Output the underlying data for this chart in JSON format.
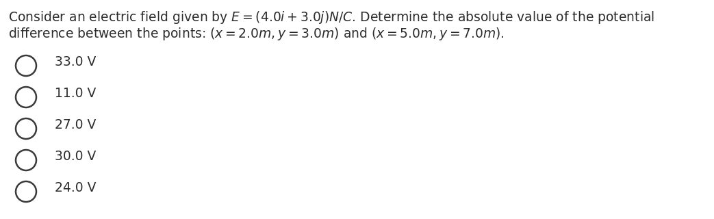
{
  "question_line1": "Consider an electric field given by $E = (4.0i + 3.0j)N/C$. Determine the absolute value of the potential",
  "question_line2": "difference between the points: $(x = 2.0m, y = 3.0m)$ and $(x = 5.0m, y = 7.0m)$.",
  "choices": [
    "33.0 V",
    "11.0 V",
    "27.0 V",
    "30.0 V",
    "24.0 V"
  ],
  "background_color": "#ffffff",
  "text_color": "#2c2c2c",
  "circle_color": "#3a3a3a",
  "font_size_question": 13.5,
  "font_size_choices": 13.5,
  "fig_width": 10.43,
  "fig_height": 3.2,
  "dpi": 100
}
